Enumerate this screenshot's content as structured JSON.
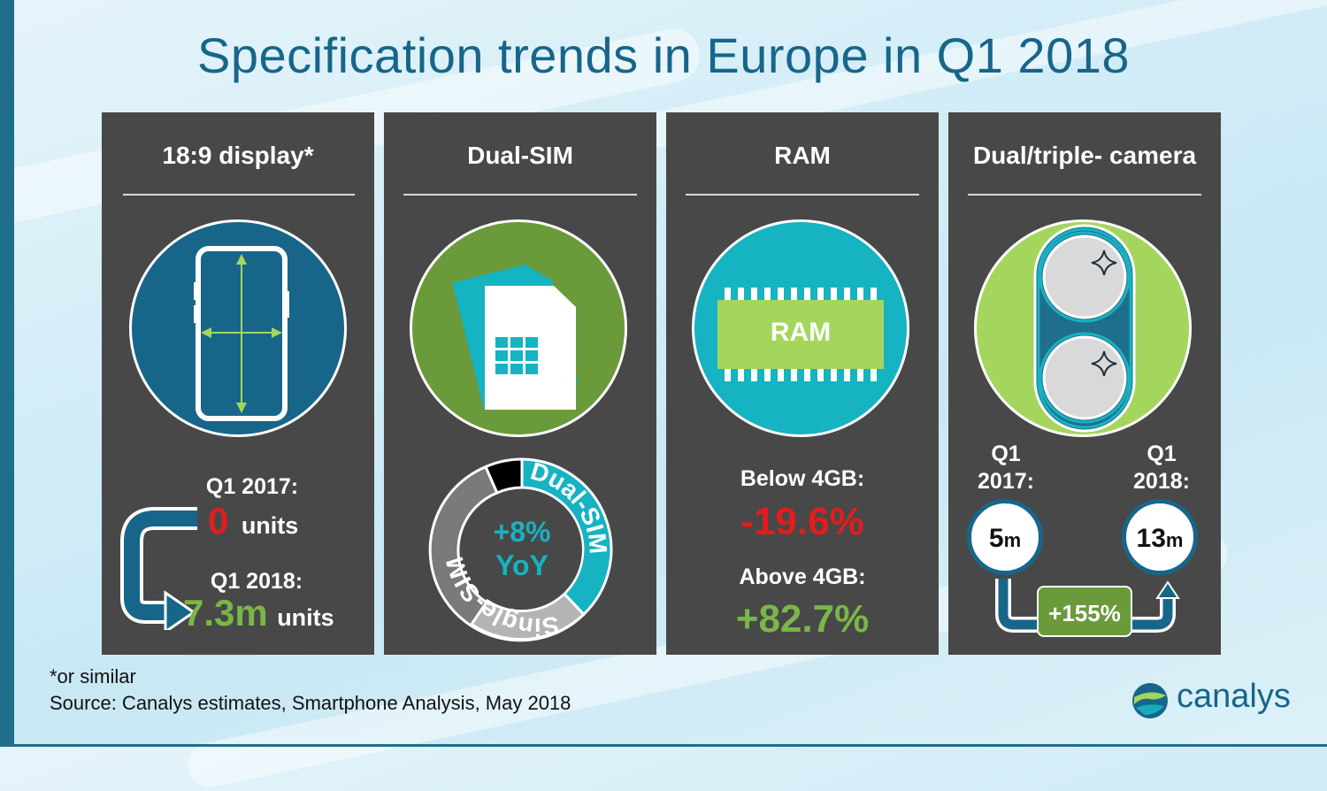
{
  "title": "Specification trends in Europe in Q1 2018",
  "colors": {
    "panel": "#484848",
    "title": "#17668a",
    "blue": "#17668a",
    "green": "#6a9a3a",
    "teal": "#16b3c2",
    "lime": "#a4d65e",
    "red": "#e11d1d"
  },
  "panels": {
    "display": {
      "title": "18:9 display*",
      "q1_2017_label": "Q1 2017:",
      "q1_2017_value": "0",
      "q1_2017_unit": "units",
      "q1_2018_label": "Q1 2018:",
      "q1_2018_value": "7.3m",
      "q1_2018_unit": "units"
    },
    "dualsim": {
      "title": "Dual-SIM",
      "yoy_value": "+8%",
      "yoy_label": "YoY",
      "ring_dual": "Dual-SIM",
      "ring_single": "Single-SIM"
    },
    "ram": {
      "title": "RAM",
      "chip_label": "RAM",
      "below_label": "Below 4GB:",
      "below_value": "-19.6%",
      "above_label": "Above 4GB:",
      "above_value": "+82.7%"
    },
    "camera": {
      "title": "Dual/triple- camera",
      "left_q": "Q1",
      "left_year": "2017:",
      "left_num": "5",
      "left_unit": "m",
      "right_q": "Q1",
      "right_year": "2018:",
      "right_num": "13",
      "right_unit": "m",
      "growth": "+155%"
    }
  },
  "footnote": "*or similar",
  "source": "Source: Canalys estimates, Smartphone Analysis, May 2018",
  "brand": "canalys"
}
